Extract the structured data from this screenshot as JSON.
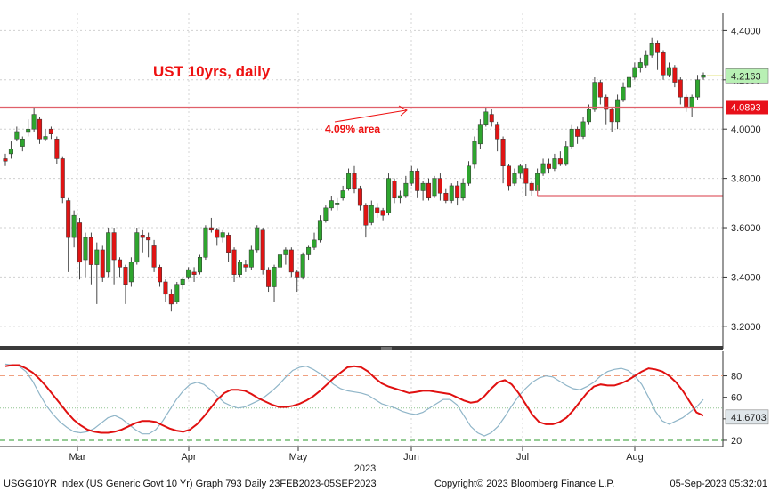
{
  "chart_data": [
    {
      "type": "candlestick",
      "title": "UST 10yrs, daily",
      "annotation": "4.09% area",
      "ylim": [
        3.12,
        4.47
      ],
      "y_ticks": [
        "4.4000",
        "4.2000",
        "4.0000",
        "3.8000",
        "3.6000",
        "3.4000",
        "3.2000"
      ],
      "x_ticks": [
        "Mar",
        "Apr",
        "May",
        "Jun",
        "Jul",
        "Aug"
      ],
      "year_label": "2023",
      "last_price_label": "4.2163",
      "last_price": 4.2163,
      "level_label": "4.0893",
      "level": 4.0893,
      "support_level": 3.73,
      "colors": {
        "up": "#2ea52e",
        "down": "#e01414",
        "level": "#e0606a",
        "title": "#ee1111"
      },
      "candles": [
        [
          3.88,
          3.87,
          3.9,
          3.85
        ],
        [
          3.9,
          3.92,
          3.95,
          3.88
        ],
        [
          3.96,
          3.99,
          4.01,
          3.95
        ],
        [
          3.93,
          3.96,
          3.97,
          3.91
        ],
        [
          3.99,
          4.0,
          4.04,
          3.97
        ],
        [
          4.0,
          4.06,
          4.09,
          3.99
        ],
        [
          4.04,
          3.96,
          4.05,
          3.94
        ],
        [
          3.96,
          3.97,
          4.0,
          3.95
        ],
        [
          4.0,
          3.98,
          4.01,
          3.96
        ],
        [
          3.96,
          3.88,
          3.97,
          3.86
        ],
        [
          3.88,
          3.72,
          3.89,
          3.7
        ],
        [
          3.71,
          3.56,
          3.72,
          3.42
        ],
        [
          3.56,
          3.65,
          3.67,
          3.52
        ],
        [
          3.62,
          3.46,
          3.64,
          3.39
        ],
        [
          3.47,
          3.56,
          3.58,
          3.4
        ],
        [
          3.56,
          3.45,
          3.58,
          3.37
        ],
        [
          3.45,
          3.51,
          3.54,
          3.29
        ],
        [
          3.51,
          3.4,
          3.53,
          3.38
        ],
        [
          3.42,
          3.58,
          3.6,
          3.4
        ],
        [
          3.58,
          3.47,
          3.6,
          3.37
        ],
        [
          3.47,
          3.44,
          3.48,
          3.4
        ],
        [
          3.44,
          3.37,
          3.45,
          3.29
        ],
        [
          3.38,
          3.46,
          3.48,
          3.36
        ],
        [
          3.46,
          3.58,
          3.6,
          3.45
        ],
        [
          3.57,
          3.56,
          3.59,
          3.5
        ],
        [
          3.56,
          3.55,
          3.58,
          3.48
        ],
        [
          3.53,
          3.44,
          3.55,
          3.42
        ],
        [
          3.44,
          3.38,
          3.45,
          3.36
        ],
        [
          3.38,
          3.33,
          3.39,
          3.3
        ],
        [
          3.33,
          3.29,
          3.35,
          3.26
        ],
        [
          3.3,
          3.37,
          3.38,
          3.29
        ],
        [
          3.37,
          3.39,
          3.4,
          3.35
        ],
        [
          3.4,
          3.43,
          3.44,
          3.39
        ],
        [
          3.42,
          3.41,
          3.44,
          3.38
        ],
        [
          3.42,
          3.48,
          3.49,
          3.41
        ],
        [
          3.48,
          3.6,
          3.61,
          3.47
        ],
        [
          3.6,
          3.59,
          3.64,
          3.58
        ],
        [
          3.59,
          3.56,
          3.6,
          3.53
        ],
        [
          3.56,
          3.58,
          3.59,
          3.54
        ],
        [
          3.57,
          3.5,
          3.58,
          3.46
        ],
        [
          3.51,
          3.41,
          3.52,
          3.38
        ],
        [
          3.41,
          3.46,
          3.47,
          3.4
        ],
        [
          3.45,
          3.44,
          3.47,
          3.42
        ],
        [
          3.44,
          3.51,
          3.53,
          3.43
        ],
        [
          3.51,
          3.6,
          3.61,
          3.5
        ],
        [
          3.59,
          3.43,
          3.6,
          3.41
        ],
        [
          3.43,
          3.36,
          3.44,
          3.34
        ],
        [
          3.36,
          3.44,
          3.45,
          3.3
        ],
        [
          3.44,
          3.49,
          3.5,
          3.43
        ],
        [
          3.49,
          3.51,
          3.52,
          3.45
        ],
        [
          3.51,
          3.42,
          3.52,
          3.4
        ],
        [
          3.42,
          3.4,
          3.43,
          3.34
        ],
        [
          3.4,
          3.49,
          3.5,
          3.39
        ],
        [
          3.49,
          3.52,
          3.53,
          3.47
        ],
        [
          3.52,
          3.55,
          3.58,
          3.51
        ],
        [
          3.55,
          3.63,
          3.65,
          3.54
        ],
        [
          3.63,
          3.68,
          3.69,
          3.62
        ],
        [
          3.68,
          3.71,
          3.73,
          3.67
        ],
        [
          3.7,
          3.7,
          3.72,
          3.67
        ],
        [
          3.72,
          3.75,
          3.77,
          3.71
        ],
        [
          3.76,
          3.82,
          3.84,
          3.75
        ],
        [
          3.82,
          3.76,
          3.85,
          3.74
        ],
        [
          3.76,
          3.69,
          3.77,
          3.67
        ],
        [
          3.69,
          3.61,
          3.7,
          3.56
        ],
        [
          3.62,
          3.69,
          3.71,
          3.61
        ],
        [
          3.68,
          3.66,
          3.7,
          3.64
        ],
        [
          3.67,
          3.65,
          3.68,
          3.63
        ],
        [
          3.66,
          3.8,
          3.82,
          3.65
        ],
        [
          3.79,
          3.72,
          3.8,
          3.7
        ],
        [
          3.72,
          3.73,
          3.75,
          3.7
        ],
        [
          3.73,
          3.78,
          3.81,
          3.72
        ],
        [
          3.78,
          3.83,
          3.85,
          3.77
        ],
        [
          3.83,
          3.75,
          3.84,
          3.72
        ],
        [
          3.75,
          3.78,
          3.79,
          3.71
        ],
        [
          3.78,
          3.72,
          3.8,
          3.71
        ],
        [
          3.73,
          3.8,
          3.81,
          3.72
        ],
        [
          3.8,
          3.74,
          3.82,
          3.71
        ],
        [
          3.74,
          3.71,
          3.76,
          3.7
        ],
        [
          3.71,
          3.77,
          3.78,
          3.7
        ],
        [
          3.77,
          3.72,
          3.79,
          3.69
        ],
        [
          3.72,
          3.78,
          3.8,
          3.71
        ],
        [
          3.78,
          3.85,
          3.87,
          3.77
        ],
        [
          3.86,
          3.95,
          3.97,
          3.84
        ],
        [
          3.94,
          4.02,
          4.04,
          3.92
        ],
        [
          4.02,
          4.07,
          4.09,
          4.01
        ],
        [
          4.06,
          4.03,
          4.08,
          4.01
        ],
        [
          4.02,
          3.96,
          4.03,
          3.91
        ],
        [
          3.96,
          3.85,
          3.97,
          3.78
        ],
        [
          3.85,
          3.77,
          3.86,
          3.75
        ],
        [
          3.78,
          3.82,
          3.84,
          3.77
        ],
        [
          3.82,
          3.85,
          3.86,
          3.8
        ],
        [
          3.84,
          3.78,
          3.86,
          3.73
        ],
        [
          3.78,
          3.75,
          3.79,
          3.73
        ],
        [
          3.75,
          3.82,
          3.84,
          3.74
        ],
        [
          3.82,
          3.86,
          3.88,
          3.81
        ],
        [
          3.86,
          3.84,
          3.88,
          3.82
        ],
        [
          3.84,
          3.88,
          3.9,
          3.83
        ],
        [
          3.88,
          3.86,
          3.91,
          3.85
        ],
        [
          3.86,
          3.93,
          3.95,
          3.85
        ],
        [
          3.93,
          4.0,
          4.02,
          3.92
        ],
        [
          4.0,
          3.97,
          4.01,
          3.94
        ],
        [
          3.97,
          4.03,
          4.05,
          3.96
        ],
        [
          4.03,
          4.08,
          4.1,
          4.02
        ],
        [
          4.08,
          4.19,
          4.21,
          4.07
        ],
        [
          4.19,
          4.13,
          4.2,
          4.1
        ],
        [
          4.13,
          4.08,
          4.14,
          4.02
        ],
        [
          4.08,
          4.03,
          4.09,
          3.99
        ],
        [
          4.03,
          4.12,
          4.14,
          4.0
        ],
        [
          4.12,
          4.17,
          4.19,
          4.11
        ],
        [
          4.17,
          4.21,
          4.23,
          4.16
        ],
        [
          4.21,
          4.25,
          4.27,
          4.2
        ],
        [
          4.25,
          4.27,
          4.29,
          4.23
        ],
        [
          4.26,
          4.3,
          4.32,
          4.25
        ],
        [
          4.3,
          4.35,
          4.37,
          4.29
        ],
        [
          4.35,
          4.31,
          4.36,
          4.24
        ],
        [
          4.31,
          4.22,
          4.32,
          4.2
        ],
        [
          4.22,
          4.25,
          4.27,
          4.21
        ],
        [
          4.25,
          4.19,
          4.26,
          4.17
        ],
        [
          4.2,
          4.13,
          4.21,
          4.1
        ],
        [
          4.13,
          4.09,
          4.14,
          4.07
        ],
        [
          4.09,
          4.13,
          4.14,
          4.05
        ],
        [
          4.13,
          4.2,
          4.22,
          4.12
        ],
        [
          4.21,
          4.22,
          4.23,
          4.2
        ]
      ]
    },
    {
      "type": "line",
      "title": "",
      "ylim": [
        15,
        102
      ],
      "y_ticks": [
        "80",
        "60",
        "40",
        "20"
      ],
      "last_value_label": "41.6703",
      "levels": {
        "upper": 80,
        "middle": 50,
        "lower": 20
      },
      "series": [
        {
          "color": "#e01010",
          "values": [
            89,
            90,
            90,
            87,
            83,
            77,
            70,
            62,
            54,
            46,
            39,
            34,
            30,
            28,
            27,
            27,
            28,
            30,
            33,
            36,
            38,
            38,
            37,
            34,
            31,
            29,
            28,
            30,
            35,
            42,
            50,
            58,
            64,
            67,
            67,
            66,
            63,
            59,
            56,
            53,
            51,
            51,
            52,
            54,
            57,
            61,
            66,
            72,
            78,
            83,
            88,
            89,
            88,
            84,
            78,
            73,
            70,
            68,
            66,
            64,
            65,
            66,
            66,
            65,
            64,
            63,
            60,
            57,
            55,
            56,
            61,
            68,
            74,
            76,
            72,
            64,
            54,
            44,
            37,
            35,
            35,
            37,
            41,
            48,
            56,
            64,
            70,
            72,
            71,
            71,
            73,
            76,
            80,
            84,
            87,
            86,
            84,
            80,
            74,
            66,
            56,
            46,
            43
          ]
        },
        {
          "color": "#8fb5c8",
          "values": [
            91,
            90,
            89,
            84,
            75,
            63,
            52,
            44,
            37,
            32,
            28,
            27,
            28,
            31,
            36,
            41,
            43,
            40,
            35,
            30,
            26,
            26,
            30,
            38,
            48,
            58,
            66,
            72,
            74,
            72,
            67,
            61,
            55,
            52,
            50,
            51,
            54,
            57,
            61,
            66,
            72,
            79,
            85,
            88,
            89,
            86,
            82,
            77,
            72,
            68,
            66,
            65,
            64,
            62,
            58,
            54,
            52,
            50,
            47,
            45,
            44,
            46,
            50,
            54,
            58,
            58,
            53,
            43,
            33,
            27,
            24,
            27,
            33,
            42,
            52,
            61,
            68,
            74,
            78,
            80,
            79,
            75,
            71,
            68,
            67,
            70,
            74,
            80,
            84,
            86,
            87,
            85,
            80,
            72,
            60,
            47,
            38,
            35,
            38,
            41,
            46,
            51,
            58
          ]
        }
      ]
    }
  ],
  "footer": {
    "index_label": "USGG10YR Index (US Generic Govt 10 Yr) Graph 793  Daily 23FEB2023-05SEP2023",
    "copyright": "Copyright© 2023 Bloomberg Finance L.P.",
    "timestamp": "05-Sep-2023 05:32:01"
  }
}
